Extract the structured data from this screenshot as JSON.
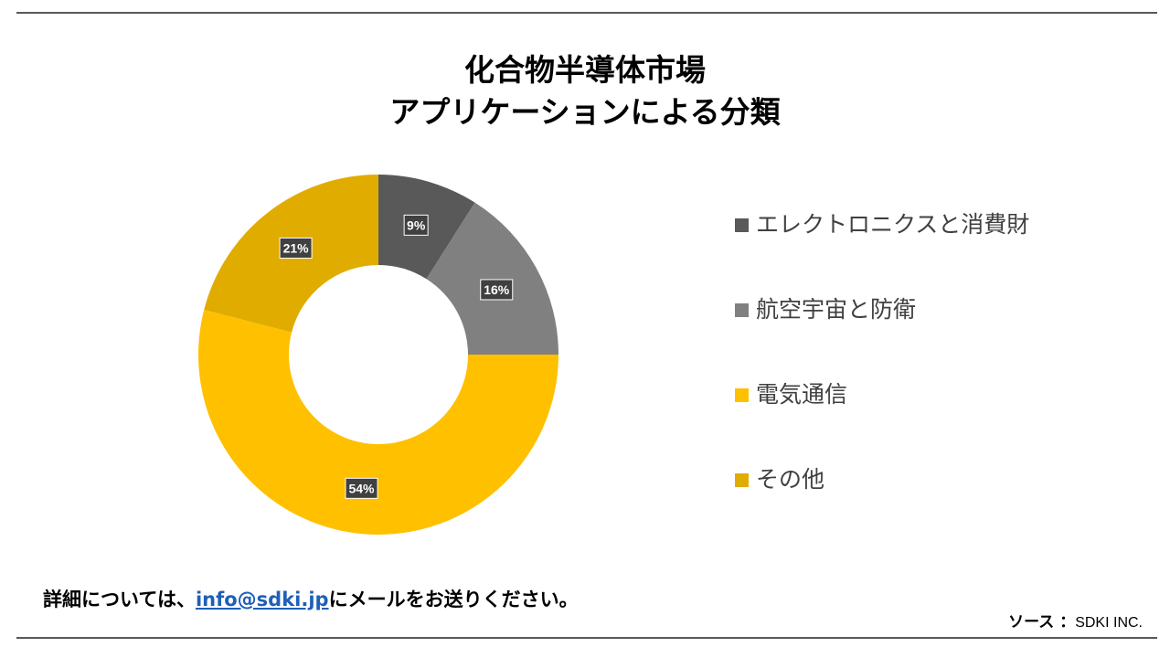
{
  "chart_data": {
    "type": "donut",
    "title_lines": [
      "化合物半導体市場",
      "アプリケーションによる分類"
    ],
    "categories": [
      "エレクトロニクスと消費財",
      "航空宇宙と防衛",
      "電気通信",
      "その他"
    ],
    "values": [
      9,
      16,
      54,
      21
    ],
    "data_labels": [
      "9%",
      "16%",
      "54%",
      "21%"
    ],
    "colors": [
      "#595959",
      "#808080",
      "#FFC000",
      "#E1AC00"
    ],
    "legend_position": "right"
  },
  "footer": {
    "contact_prefix": "詳細については、",
    "contact_email": "info@sdki.jp",
    "contact_suffix": "にメールをお送りください。",
    "source_label": "ソース ：",
    "source_value": "SDKI INC."
  }
}
